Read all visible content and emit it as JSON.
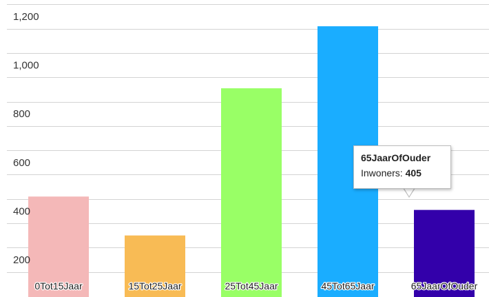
{
  "chart_data": {
    "type": "bar",
    "categories": [
      "0Tot15Jaar",
      "15Tot25Jaar",
      "25Tot45Jaar",
      "45Tot65Jaar",
      "65JaarOfOuder"
    ],
    "series": [
      {
        "name": "Inwoners",
        "values": [
          460,
          300,
          905,
          1160,
          405
        ]
      }
    ],
    "colors": [
      "#f4b8b8",
      "#f8bb55",
      "#99ff66",
      "#1aadff",
      "#3300aa"
    ],
    "yticks": [
      "1,200",
      "1,000",
      "800",
      "600",
      "400",
      "200"
    ],
    "ylim": [
      100,
      1200
    ],
    "grid": true,
    "legend": "none",
    "tooltip": {
      "title": "65JaarOfOuder",
      "label": "Inwoners:",
      "value": "405"
    }
  }
}
